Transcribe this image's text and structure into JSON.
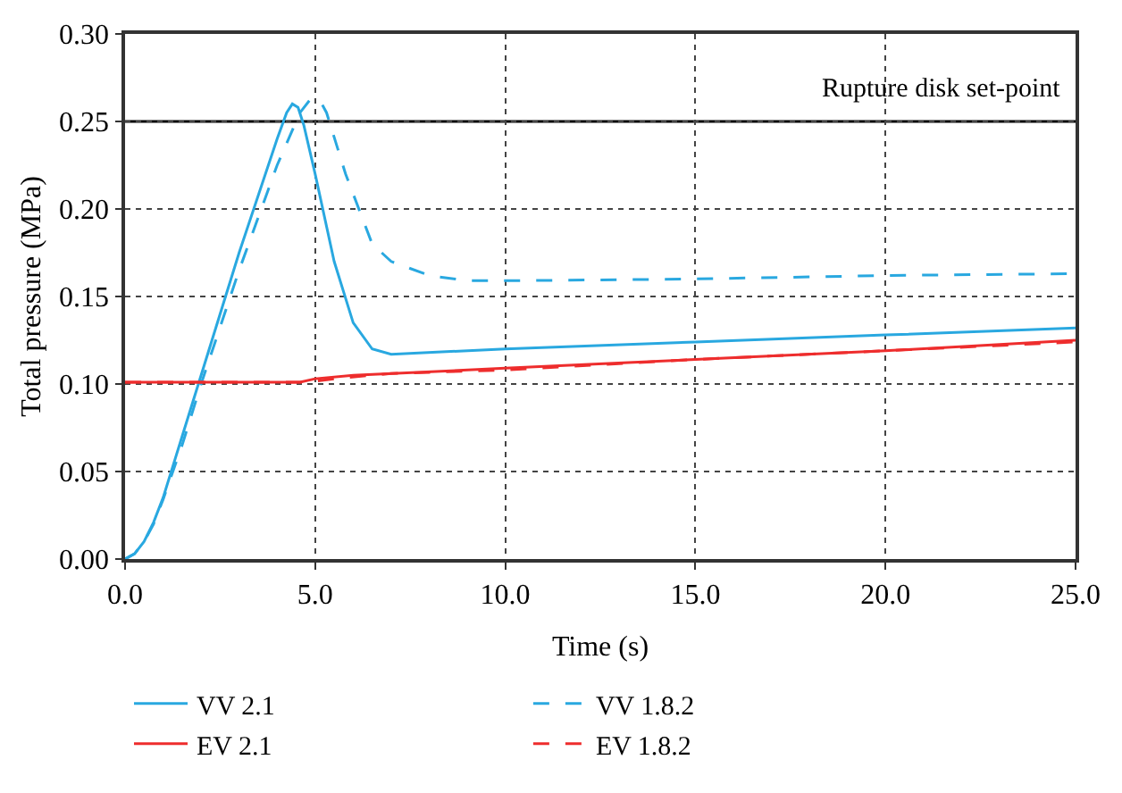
{
  "chart_data": {
    "type": "line",
    "xlabel": "Time (s)",
    "ylabel": "Total pressure (MPa)",
    "xlim": [
      0,
      25
    ],
    "xticks": [
      {
        "value": 0,
        "label": "0.0"
      },
      {
        "value": 5,
        "label": "5.0"
      },
      {
        "value": 10,
        "label": "10.0"
      },
      {
        "value": 15,
        "label": "15.0"
      },
      {
        "value": 20,
        "label": "20.0"
      },
      {
        "value": 25,
        "label": "25.0"
      }
    ],
    "ylim": [
      0,
      0.3
    ],
    "yticks": [
      {
        "value": 0,
        "label": "0.00"
      },
      {
        "value": 0.05,
        "label": "0.05"
      },
      {
        "value": 0.1,
        "label": "0.10"
      },
      {
        "value": 0.15,
        "label": "0.15"
      },
      {
        "value": 0.2,
        "label": "0.20"
      },
      {
        "value": 0.25,
        "label": "0.25"
      },
      {
        "value": 0.3,
        "label": "0.30"
      }
    ],
    "grid": true,
    "legend": "bottom",
    "marker": "none",
    "ref_lines": [
      {
        "axis": "y",
        "value": 0.25,
        "label": "Rupture disk set-point",
        "color": "#000000",
        "line_style": "solid"
      }
    ],
    "series": [
      {
        "name": "VV 2.1",
        "color": "#29a8e0",
        "line_style": "solid",
        "x": [
          0,
          0.25,
          0.5,
          0.75,
          1.0,
          1.5,
          2.0,
          3.0,
          4.0,
          4.25,
          4.4,
          4.55,
          4.7,
          5.0,
          5.5,
          6.0,
          6.5,
          7.0,
          10,
          15,
          20,
          25
        ],
        "values": [
          0,
          0.003,
          0.01,
          0.021,
          0.035,
          0.07,
          0.105,
          0.175,
          0.24,
          0.255,
          0.26,
          0.258,
          0.248,
          0.22,
          0.17,
          0.135,
          0.12,
          0.117,
          0.12,
          0.124,
          0.128,
          0.132
        ]
      },
      {
        "name": "VV 1.8.2",
        "color": "#29a8e0",
        "line_style": "dashed",
        "x": [
          0,
          0.25,
          0.5,
          0.75,
          1.0,
          1.5,
          2.0,
          3.0,
          4.0,
          4.6,
          4.85,
          5.0,
          5.15,
          5.3,
          5.8,
          6.5,
          7.0,
          8.0,
          9.0,
          10,
          15,
          20,
          25
        ],
        "values": [
          0,
          0.003,
          0.01,
          0.02,
          0.034,
          0.065,
          0.1,
          0.165,
          0.225,
          0.255,
          0.262,
          0.263,
          0.261,
          0.255,
          0.22,
          0.18,
          0.17,
          0.162,
          0.159,
          0.159,
          0.16,
          0.162,
          0.163
        ]
      },
      {
        "name": "EV 2.1",
        "color": "#ee2d2d",
        "line_style": "solid",
        "x": [
          0,
          4.6,
          5.0,
          6.0,
          10,
          15,
          20,
          25
        ],
        "values": [
          0.101,
          0.101,
          0.103,
          0.105,
          0.109,
          0.114,
          0.119,
          0.125
        ]
      },
      {
        "name": "EV 1.8.2",
        "color": "#ee2d2d",
        "line_style": "dashed",
        "x": [
          0,
          4.8,
          5.5,
          7,
          10,
          15,
          20,
          25
        ],
        "values": [
          0.101,
          0.101,
          0.103,
          0.106,
          0.108,
          0.114,
          0.119,
          0.124
        ]
      }
    ]
  }
}
